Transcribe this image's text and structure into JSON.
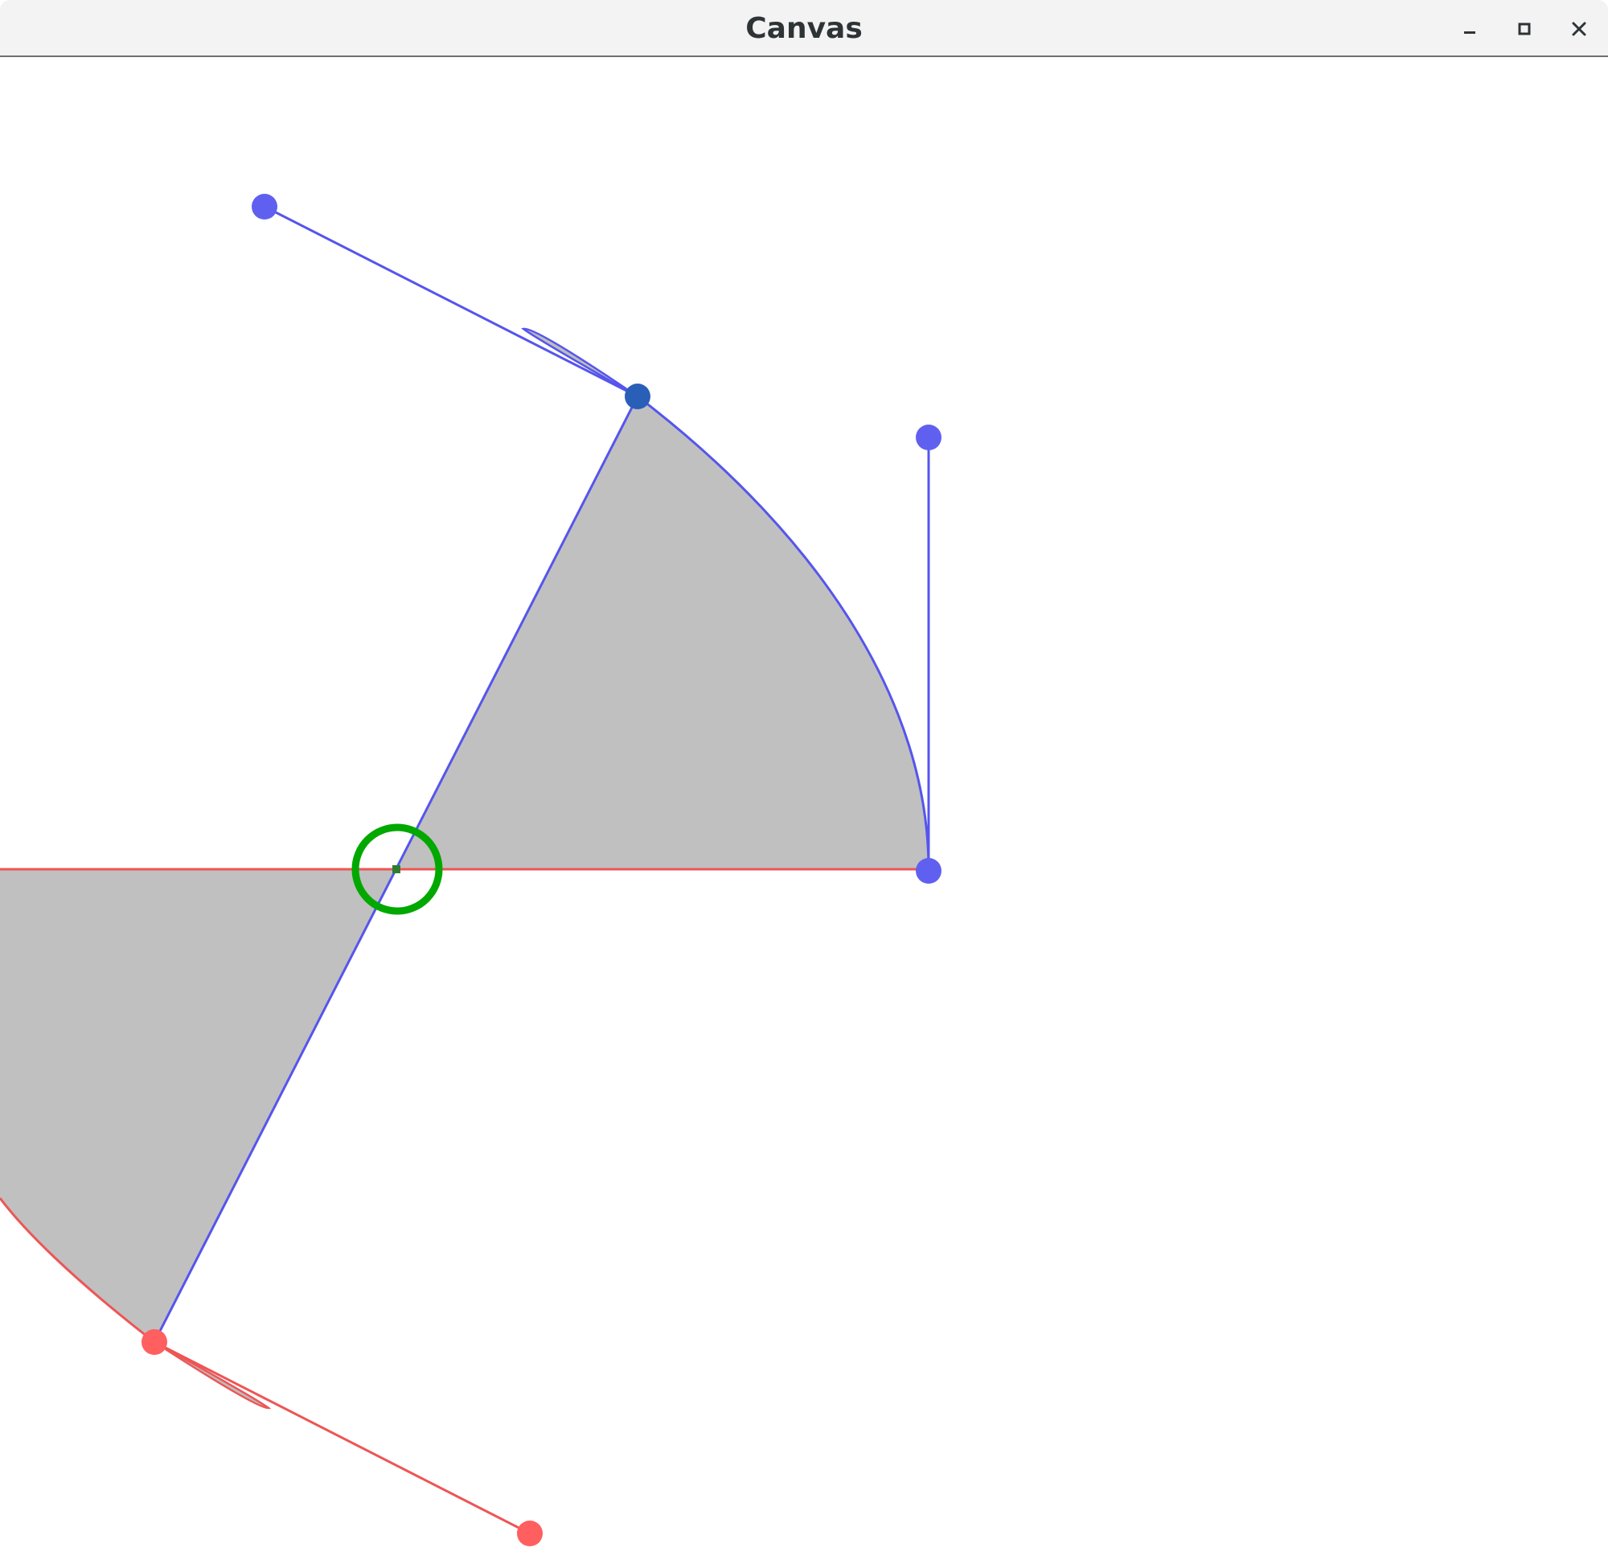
{
  "window": {
    "title": "Canvas",
    "buttons": {
      "minimize": "minimize-icon",
      "maximize": "maximize-icon",
      "close": "close-icon"
    }
  },
  "canvas": {
    "colors": {
      "blue_path": "#5555ee",
      "red_path": "#ee5555",
      "blue_handle": "#6060f0",
      "red_handle": "#ff5f5f",
      "active_handle": "#2a5fb8",
      "fill": "#c0c0c0",
      "pivot_ring": "#00a800",
      "pivot_dot": "#2e7d2e"
    }
  }
}
